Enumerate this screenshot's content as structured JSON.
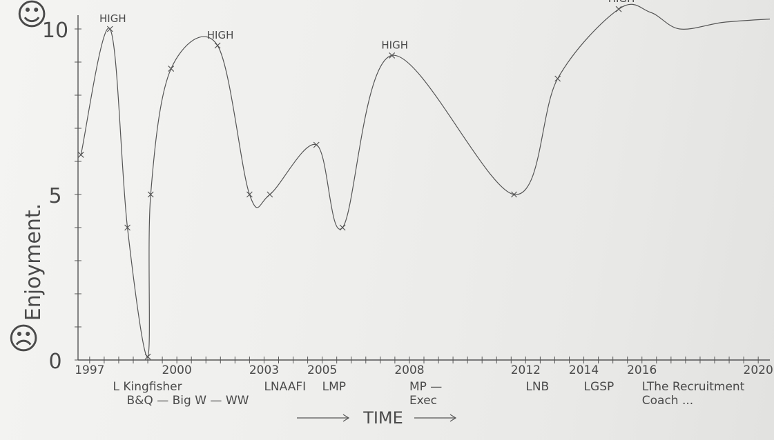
{
  "chart_data": {
    "type": "line",
    "xlabel": "TIME",
    "ylabel": "Enjoyment.",
    "ylim": [
      0,
      10
    ],
    "y_ticks": [
      "0",
      "5",
      "10"
    ],
    "x_tick_labels": [
      "1997",
      "2000",
      "2003",
      "2005",
      "2008",
      "2012",
      "2014",
      "2016",
      "2020"
    ],
    "xlim": [
      1996.6,
      2020.4
    ],
    "grid": false,
    "series": [
      {
        "x": [
          1996.7,
          1997.7,
          1998.3,
          1999.0,
          1999.1,
          1999.8,
          2001.4,
          2002.5,
          2003.2,
          2004.8,
          2005.7,
          2007.4,
          2011.6,
          2013.1,
          2015.2
        ],
        "values": [
          6.2,
          10.0,
          4.0,
          0.1,
          5.0,
          8.8,
          9.5,
          5.0,
          5.0,
          6.5,
          4.0,
          9.2,
          5.0,
          8.5,
          10.6
        ]
      }
    ],
    "annotations": [
      {
        "text": "HIGH",
        "x": 1997.7,
        "y": 10.0
      },
      {
        "text": "HIGH",
        "x": 2001.4,
        "y": 9.5
      },
      {
        "text": "HIGH",
        "x": 2007.4,
        "y": 9.2
      },
      {
        "text": "HIGH",
        "x": 2015.2,
        "y": 10.6
      }
    ],
    "top_face": "☺",
    "bottom_face": "☹"
  },
  "job_labels": [
    {
      "text": "L Kingfisher",
      "x": 1997.8
    },
    {
      "text": "B&Q — Big W — WW",
      "x": 1997.8
    },
    {
      "text": "LNAAFI",
      "x": 2003.0
    },
    {
      "text": "LMP",
      "x": 2005.0
    },
    {
      "text": "MP —",
      "x": 2008.0
    },
    {
      "text": "Exec",
      "x": 2008.0
    },
    {
      "text": "LNB",
      "x": 2012.0
    },
    {
      "text": "LGSP",
      "x": 2014.0
    },
    {
      "text": "LThe Recruitment",
      "x": 2016.0
    },
    {
      "text": "Coach ...",
      "x": 2016.0
    }
  ],
  "time_label": "TIME"
}
